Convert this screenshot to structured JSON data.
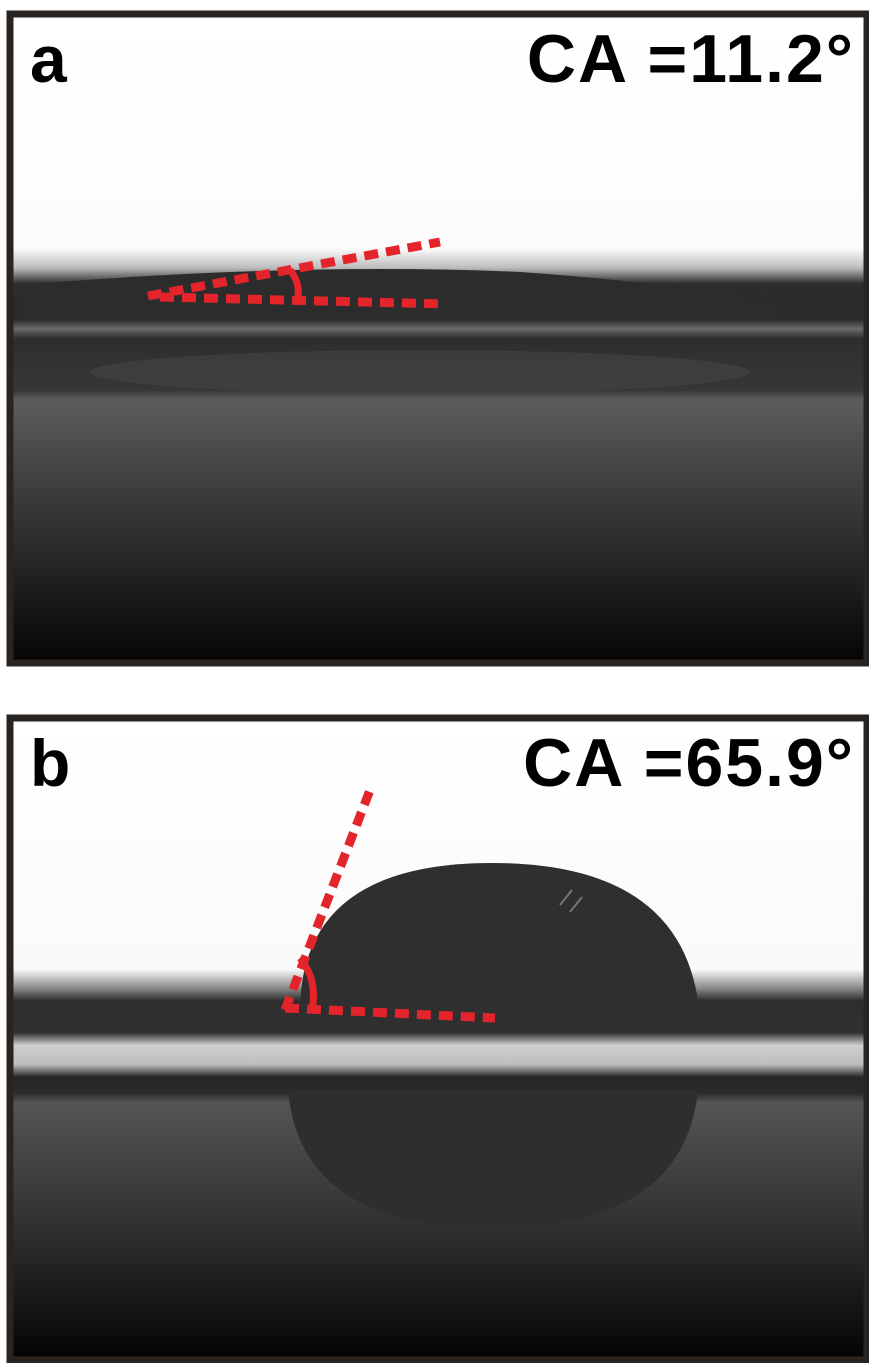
{
  "panels": [
    {
      "label": "a",
      "caption": "CA =11.2°"
    },
    {
      "label": "b",
      "caption": "CA =65.9°"
    }
  ]
}
